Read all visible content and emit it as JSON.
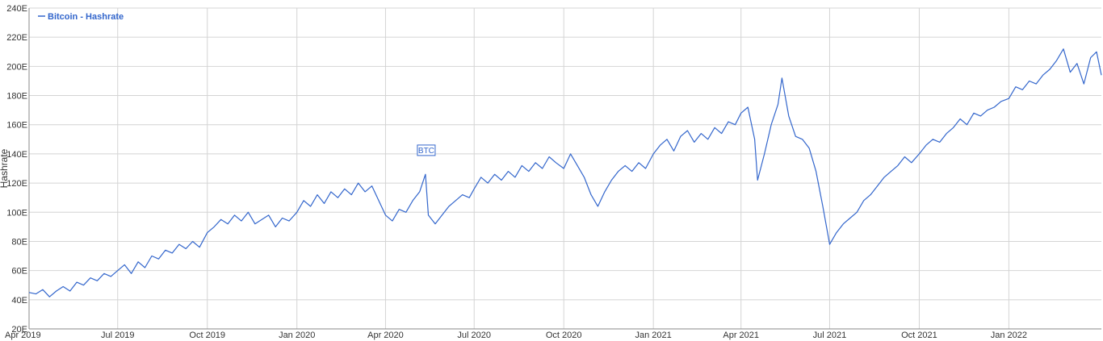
{
  "chart_data": {
    "type": "line",
    "ylabel": "Hashrate",
    "xlabel": "",
    "ylim": [
      20,
      240
    ],
    "y_unit_suffix": "E",
    "y_ticks": [
      20,
      40,
      60,
      80,
      100,
      120,
      140,
      160,
      180,
      200,
      220,
      240
    ],
    "y_tick_labels": [
      "20E",
      "40E",
      "60E",
      "80E",
      "100E",
      "120E",
      "140E",
      "160E",
      "180E",
      "200E",
      "220E",
      "240E"
    ],
    "xlim": [
      "2019-04-01",
      "2022-04-06"
    ],
    "x_ticks": [
      "2019-04-01",
      "2019-07-01",
      "2019-10-01",
      "2020-01-01",
      "2020-04-01",
      "2020-07-01",
      "2020-10-01",
      "2021-01-01",
      "2021-04-01",
      "2021-07-01",
      "2021-10-01",
      "2022-01-01"
    ],
    "x_tick_labels": [
      "Apr 2019",
      "Jul 2019",
      "Oct 2019",
      "Jan 2020",
      "Apr 2020",
      "Jul 2020",
      "Oct 2020",
      "Jan 2021",
      "Apr 2021",
      "Jul 2021",
      "Oct 2021",
      "Jan 2022"
    ],
    "grid": true,
    "legend": {
      "placement": "top-left",
      "entries": [
        "Bitcoin - Hashrate"
      ]
    },
    "annotations": [
      {
        "text": "BTC",
        "x": "2020-05-12",
        "y": 140
      }
    ],
    "series": [
      {
        "name": "Bitcoin - Hashrate",
        "color": "#3366cc",
        "points": [
          [
            "2019-04-01",
            45
          ],
          [
            "2019-04-08",
            44
          ],
          [
            "2019-04-15",
            47
          ],
          [
            "2019-04-22",
            42
          ],
          [
            "2019-04-29",
            46
          ],
          [
            "2019-05-06",
            49
          ],
          [
            "2019-05-13",
            46
          ],
          [
            "2019-05-20",
            52
          ],
          [
            "2019-05-27",
            50
          ],
          [
            "2019-06-03",
            55
          ],
          [
            "2019-06-10",
            53
          ],
          [
            "2019-06-17",
            58
          ],
          [
            "2019-06-24",
            56
          ],
          [
            "2019-07-01",
            60
          ],
          [
            "2019-07-08",
            64
          ],
          [
            "2019-07-15",
            58
          ],
          [
            "2019-07-22",
            66
          ],
          [
            "2019-07-29",
            62
          ],
          [
            "2019-08-05",
            70
          ],
          [
            "2019-08-12",
            68
          ],
          [
            "2019-08-19",
            74
          ],
          [
            "2019-08-26",
            72
          ],
          [
            "2019-09-02",
            78
          ],
          [
            "2019-09-09",
            75
          ],
          [
            "2019-09-16",
            80
          ],
          [
            "2019-09-23",
            76
          ],
          [
            "2019-10-01",
            86
          ],
          [
            "2019-10-08",
            90
          ],
          [
            "2019-10-15",
            95
          ],
          [
            "2019-10-22",
            92
          ],
          [
            "2019-10-29",
            98
          ],
          [
            "2019-11-05",
            94
          ],
          [
            "2019-11-12",
            100
          ],
          [
            "2019-11-19",
            92
          ],
          [
            "2019-11-26",
            95
          ],
          [
            "2019-12-03",
            98
          ],
          [
            "2019-12-10",
            90
          ],
          [
            "2019-12-17",
            96
          ],
          [
            "2019-12-24",
            94
          ],
          [
            "2020-01-01",
            100
          ],
          [
            "2020-01-08",
            108
          ],
          [
            "2020-01-15",
            104
          ],
          [
            "2020-01-22",
            112
          ],
          [
            "2020-01-29",
            106
          ],
          [
            "2020-02-05",
            114
          ],
          [
            "2020-02-12",
            110
          ],
          [
            "2020-02-19",
            116
          ],
          [
            "2020-02-26",
            112
          ],
          [
            "2020-03-04",
            120
          ],
          [
            "2020-03-11",
            114
          ],
          [
            "2020-03-18",
            118
          ],
          [
            "2020-03-25",
            108
          ],
          [
            "2020-04-01",
            98
          ],
          [
            "2020-04-08",
            94
          ],
          [
            "2020-04-15",
            102
          ],
          [
            "2020-04-22",
            100
          ],
          [
            "2020-04-29",
            108
          ],
          [
            "2020-05-06",
            114
          ],
          [
            "2020-05-12",
            126
          ],
          [
            "2020-05-15",
            98
          ],
          [
            "2020-05-22",
            92
          ],
          [
            "2020-05-29",
            98
          ],
          [
            "2020-06-05",
            104
          ],
          [
            "2020-06-12",
            108
          ],
          [
            "2020-06-19",
            112
          ],
          [
            "2020-06-26",
            110
          ],
          [
            "2020-07-01",
            116
          ],
          [
            "2020-07-08",
            124
          ],
          [
            "2020-07-15",
            120
          ],
          [
            "2020-07-22",
            126
          ],
          [
            "2020-07-29",
            122
          ],
          [
            "2020-08-05",
            128
          ],
          [
            "2020-08-12",
            124
          ],
          [
            "2020-08-19",
            132
          ],
          [
            "2020-08-26",
            128
          ],
          [
            "2020-09-02",
            134
          ],
          [
            "2020-09-09",
            130
          ],
          [
            "2020-09-16",
            138
          ],
          [
            "2020-09-23",
            134
          ],
          [
            "2020-10-01",
            130
          ],
          [
            "2020-10-08",
            140
          ],
          [
            "2020-10-15",
            132
          ],
          [
            "2020-10-22",
            124
          ],
          [
            "2020-10-29",
            112
          ],
          [
            "2020-11-05",
            104
          ],
          [
            "2020-11-12",
            114
          ],
          [
            "2020-11-19",
            122
          ],
          [
            "2020-11-26",
            128
          ],
          [
            "2020-12-03",
            132
          ],
          [
            "2020-12-10",
            128
          ],
          [
            "2020-12-17",
            134
          ],
          [
            "2020-12-24",
            130
          ],
          [
            "2021-01-01",
            140
          ],
          [
            "2021-01-08",
            146
          ],
          [
            "2021-01-15",
            150
          ],
          [
            "2021-01-22",
            142
          ],
          [
            "2021-01-29",
            152
          ],
          [
            "2021-02-05",
            156
          ],
          [
            "2021-02-12",
            148
          ],
          [
            "2021-02-19",
            154
          ],
          [
            "2021-02-26",
            150
          ],
          [
            "2021-03-05",
            158
          ],
          [
            "2021-03-12",
            154
          ],
          [
            "2021-03-19",
            162
          ],
          [
            "2021-03-26",
            160
          ],
          [
            "2021-04-01",
            168
          ],
          [
            "2021-04-08",
            172
          ],
          [
            "2021-04-15",
            150
          ],
          [
            "2021-04-18",
            122
          ],
          [
            "2021-04-25",
            140
          ],
          [
            "2021-05-02",
            160
          ],
          [
            "2021-05-09",
            174
          ],
          [
            "2021-05-13",
            192
          ],
          [
            "2021-05-20",
            166
          ],
          [
            "2021-05-27",
            152
          ],
          [
            "2021-06-03",
            150
          ],
          [
            "2021-06-10",
            144
          ],
          [
            "2021-06-17",
            128
          ],
          [
            "2021-06-24",
            104
          ],
          [
            "2021-07-01",
            78
          ],
          [
            "2021-07-08",
            86
          ],
          [
            "2021-07-15",
            92
          ],
          [
            "2021-07-22",
            96
          ],
          [
            "2021-07-29",
            100
          ],
          [
            "2021-08-05",
            108
          ],
          [
            "2021-08-12",
            112
          ],
          [
            "2021-08-19",
            118
          ],
          [
            "2021-08-26",
            124
          ],
          [
            "2021-09-02",
            128
          ],
          [
            "2021-09-09",
            132
          ],
          [
            "2021-09-16",
            138
          ],
          [
            "2021-09-23",
            134
          ],
          [
            "2021-10-01",
            140
          ],
          [
            "2021-10-08",
            146
          ],
          [
            "2021-10-15",
            150
          ],
          [
            "2021-10-22",
            148
          ],
          [
            "2021-10-29",
            154
          ],
          [
            "2021-11-05",
            158
          ],
          [
            "2021-11-12",
            164
          ],
          [
            "2021-11-19",
            160
          ],
          [
            "2021-11-26",
            168
          ],
          [
            "2021-12-03",
            166
          ],
          [
            "2021-12-10",
            170
          ],
          [
            "2021-12-17",
            172
          ],
          [
            "2021-12-24",
            176
          ],
          [
            "2022-01-01",
            178
          ],
          [
            "2022-01-08",
            186
          ],
          [
            "2022-01-15",
            184
          ],
          [
            "2022-01-22",
            190
          ],
          [
            "2022-01-29",
            188
          ],
          [
            "2022-02-05",
            194
          ],
          [
            "2022-02-12",
            198
          ],
          [
            "2022-02-19",
            204
          ],
          [
            "2022-02-26",
            212
          ],
          [
            "2022-03-05",
            196
          ],
          [
            "2022-03-12",
            202
          ],
          [
            "2022-03-19",
            188
          ],
          [
            "2022-03-26",
            206
          ],
          [
            "2022-04-01",
            210
          ],
          [
            "2022-04-06",
            194
          ]
        ]
      }
    ]
  }
}
